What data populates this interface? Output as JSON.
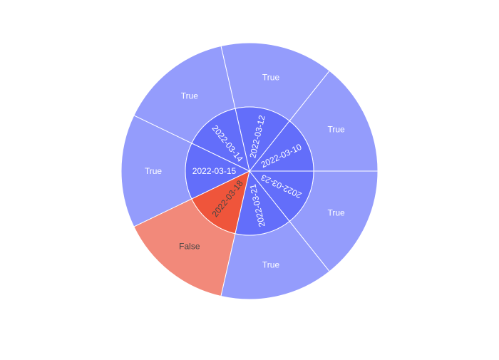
{
  "chart_data": {
    "type": "sunburst",
    "colors": {
      "inner_true": "#636efa",
      "inner_false": "#ef553b",
      "outer_true": "#949cfc",
      "outer_false": "#f2897a",
      "stroke": "#ffffff",
      "light_text": "#ffffff",
      "dark_text": "#444444"
    },
    "segments": [
      {
        "date": "2022-03-10",
        "value": 1,
        "status": "True"
      },
      {
        "date": "2022-03-12",
        "value": 1,
        "status": "True"
      },
      {
        "date": "2022-03-14",
        "value": 1,
        "status": "True"
      },
      {
        "date": "2022-03-15",
        "value": 1,
        "status": "True"
      },
      {
        "date": "2022-03-18",
        "value": 1,
        "status": "False"
      },
      {
        "date": "2022-03-21",
        "value": 1,
        "status": "True"
      },
      {
        "date": "2022-03-23",
        "value": 1,
        "status": "True"
      }
    ]
  }
}
